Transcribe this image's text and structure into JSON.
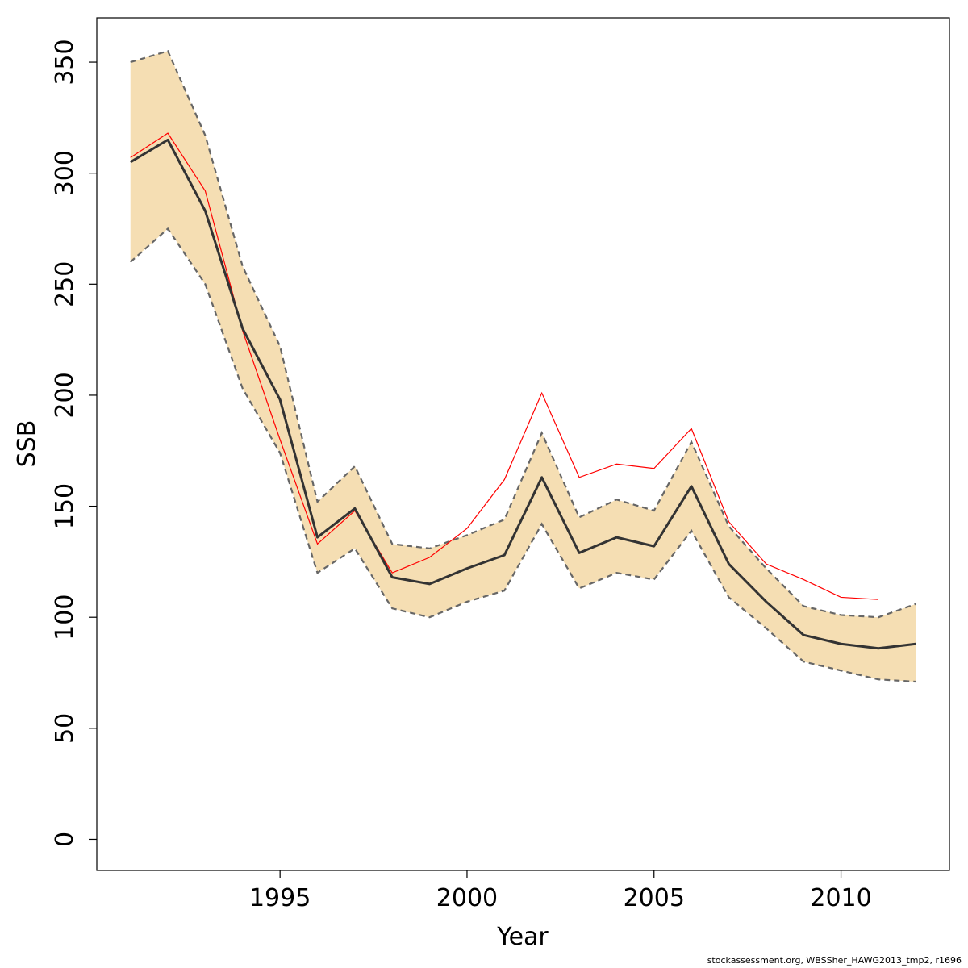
{
  "chart_data": {
    "type": "line",
    "title": "",
    "xlabel": "Year",
    "ylabel": "SSB",
    "xlim": [
      1990.1,
      2012.9
    ],
    "ylim": [
      -14,
      370
    ],
    "grid": false,
    "x": [
      1991,
      1992,
      1993,
      1994,
      1995,
      1996,
      1997,
      1998,
      1999,
      2000,
      2001,
      2002,
      2003,
      2004,
      2005,
      2006,
      2007,
      2008,
      2009,
      2010,
      2011,
      2012
    ],
    "xticks": [
      1995,
      2000,
      2005,
      2010
    ],
    "yticks": [
      0,
      50,
      100,
      150,
      200,
      250,
      300,
      350
    ],
    "series": [
      {
        "role": "estimate",
        "color": "#333333",
        "values": [
          305,
          315,
          283,
          230,
          198,
          136,
          149,
          118,
          115,
          122,
          128,
          163,
          129,
          136,
          132,
          159,
          124,
          107,
          92,
          88,
          86,
          88
        ]
      },
      {
        "role": "upper-bound",
        "color": "#666666",
        "values": [
          350,
          355,
          317,
          258,
          222,
          152,
          168,
          133,
          131,
          137,
          144,
          183,
          145,
          153,
          148,
          179,
          141,
          122,
          105,
          101,
          100,
          106
        ]
      },
      {
        "role": "lower-bound",
        "color": "#666666",
        "values": [
          260,
          275,
          250,
          203,
          174,
          120,
          131,
          104,
          100,
          107,
          112,
          142,
          113,
          120,
          117,
          139,
          109,
          95,
          80,
          76,
          72,
          71
        ]
      },
      {
        "role": "alternative-estimate",
        "color": "#ff0000",
        "x": [
          1991,
          1992,
          1993,
          1994,
          1995,
          1996,
          1997,
          1998,
          1999,
          2000,
          2001,
          2002,
          2003,
          2004,
          2005,
          2006,
          2007,
          2008,
          2009,
          2010,
          2011
        ],
        "values": [
          307,
          318,
          292,
          229,
          180,
          133,
          148,
          120,
          127,
          140,
          162,
          201,
          163,
          169,
          167,
          185,
          143,
          124,
          117,
          109,
          108
        ]
      }
    ],
    "band_color": "#f5deb3"
  },
  "footer": "stockassessment.org, WBSSher_HAWG2013_tmp2, r1696"
}
